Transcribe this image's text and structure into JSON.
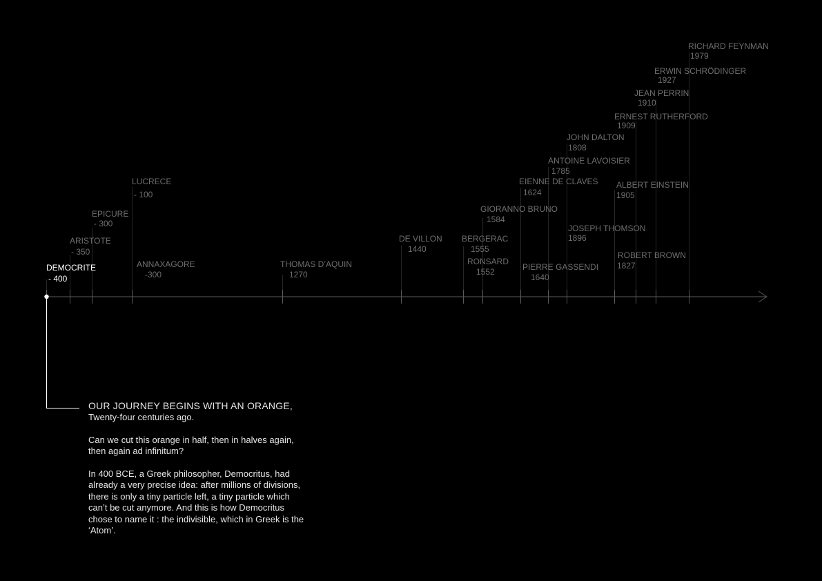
{
  "events": [
    {
      "name": "DEMOCRITE",
      "year": "- 400",
      "active": true
    },
    {
      "name": "ARISTOTE",
      "year": "- 350"
    },
    {
      "name": "EPICURE",
      "year": "- 300"
    },
    {
      "name": "LUCRECE",
      "year": "- 100"
    },
    {
      "name": "ANNAXAGORE",
      "year": "-300"
    },
    {
      "name": "THOMAS D’AQUIN",
      "year": "1270"
    },
    {
      "name": "DE VILLON",
      "year": "1440"
    },
    {
      "name": "BERGERAC",
      "year": "1555"
    },
    {
      "name": "RONSARD",
      "year": "1552"
    },
    {
      "name": "GIORANNO BRUNO",
      "year": "1584"
    },
    {
      "name": "EIENNE DE CLAVES",
      "year": "1624"
    },
    {
      "name": "PIERRE GASSENDI",
      "year": "1640"
    },
    {
      "name": "ANTOINE LAVOISIER",
      "year": "1785"
    },
    {
      "name": "JOHN DALTON",
      "year": "1808"
    },
    {
      "name": "JOSEPH THOMSON",
      "year": "1896"
    },
    {
      "name": "ROBERT BROWN",
      "year": "1827"
    },
    {
      "name": "ALBERT EINSTEIN",
      "year": "1905"
    },
    {
      "name": "ERNEST RUTHERFORD",
      "year": "1909"
    },
    {
      "name": "JEAN PERRIN",
      "year": "1910"
    },
    {
      "name": "ERWIN SCHRÖDINGER",
      "year": "1927"
    },
    {
      "name": "RICHARD FEYNMAN",
      "year": "1979"
    }
  ],
  "intro": {
    "heading": "OUR JOURNEY BEGINS WITH AN ORANGE,",
    "subheading": "Twenty-four centuries ago.",
    "paragraph1": [
      "Can we cut this orange in half, then in halves again,",
      "then again ad infinitum?"
    ],
    "paragraph2": [
      "In 400 BCE, a Greek philosopher, Democritus, had",
      "already a very precise idea: after millions of divisions,",
      "there is only a tiny particle left, a tiny particle which",
      "can’t be cut anymore. And this is how Democritus",
      "chose to name it : the indivisible, which in Greek is the",
      "‘Atom’."
    ]
  },
  "colors": {
    "background": "#000000",
    "axis": "#5a5a5a",
    "label": "#6e6e6e",
    "active": "#ffffff",
    "intro_text": "#e6e6e6"
  }
}
